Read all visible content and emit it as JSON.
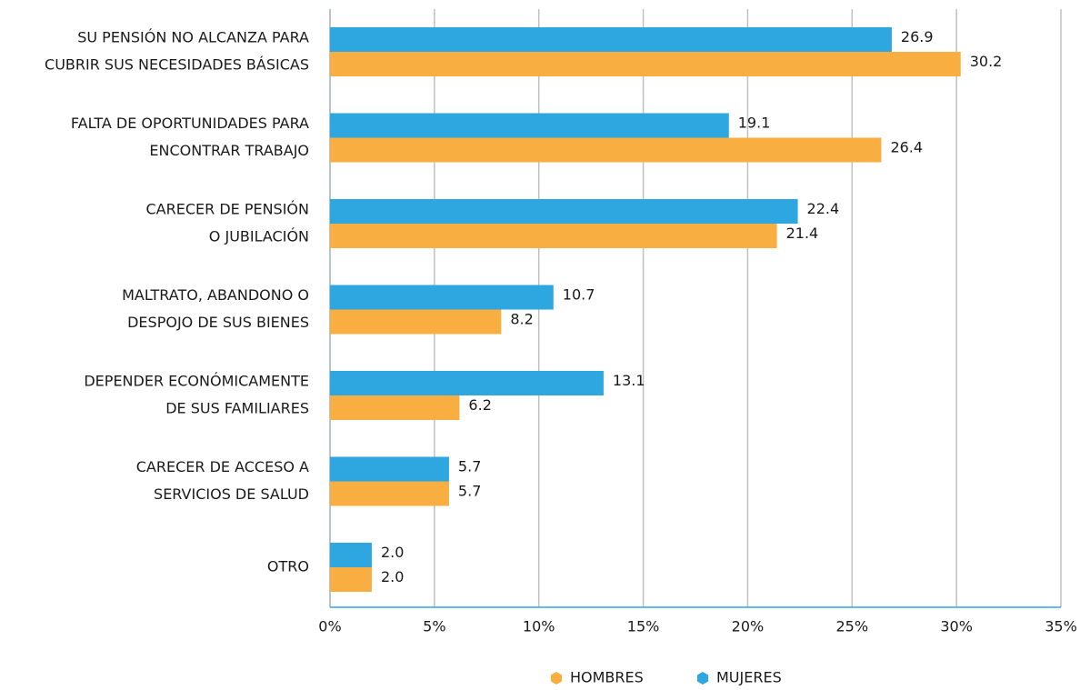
{
  "chart_data": {
    "type": "bar",
    "categories": [
      [
        "SU PENSIÓN NO ALCANZA PARA",
        "CUBRIR SUS NECESIDADES BÁSICAS"
      ],
      [
        "FALTA DE OPORTUNIDADES PARA",
        "ENCONTRAR TRABAJO"
      ],
      [
        "CARECER DE PENSIÓN",
        "O JUBILACIÓN"
      ],
      [
        "MALTRATO, ABANDONO O",
        "DESPOJO DE SUS BIENES"
      ],
      [
        "DEPENDER ECONÓMICAMENTE",
        "DE SUS FAMILIARES"
      ],
      [
        "CARECER DE ACCESO A",
        "SERVICIOS DE SALUD"
      ],
      [
        "OTRO"
      ]
    ],
    "series": [
      {
        "name": "MUJERES",
        "color": "#2ea7e0",
        "values": [
          26.9,
          19.1,
          22.4,
          10.7,
          13.1,
          5.7,
          2.0
        ],
        "value_labels": [
          "26.9",
          "19.1",
          "22.4",
          "10.7",
          "13.1",
          "5.7",
          "2.0"
        ]
      },
      {
        "name": "HOMBRES",
        "color": "#f8ae40",
        "values": [
          30.2,
          26.4,
          21.4,
          8.2,
          6.2,
          5.7,
          2.0
        ],
        "value_labels": [
          "30.2",
          "26.4",
          "21.4",
          "8.2",
          "6.2",
          "5.7",
          "2.0"
        ]
      }
    ],
    "xlim": [
      0,
      35
    ],
    "xticks": [
      {
        "value": 0,
        "label": "0%"
      },
      {
        "value": 5,
        "label": "5%"
      },
      {
        "value": 10,
        "label": "10%"
      },
      {
        "value": 15,
        "label": "15%"
      },
      {
        "value": 20,
        "label": "20%"
      },
      {
        "value": 25,
        "label": "25%"
      },
      {
        "value": 30,
        "label": "30%"
      },
      {
        "value": 35,
        "label": "35%"
      }
    ],
    "grid": true
  }
}
